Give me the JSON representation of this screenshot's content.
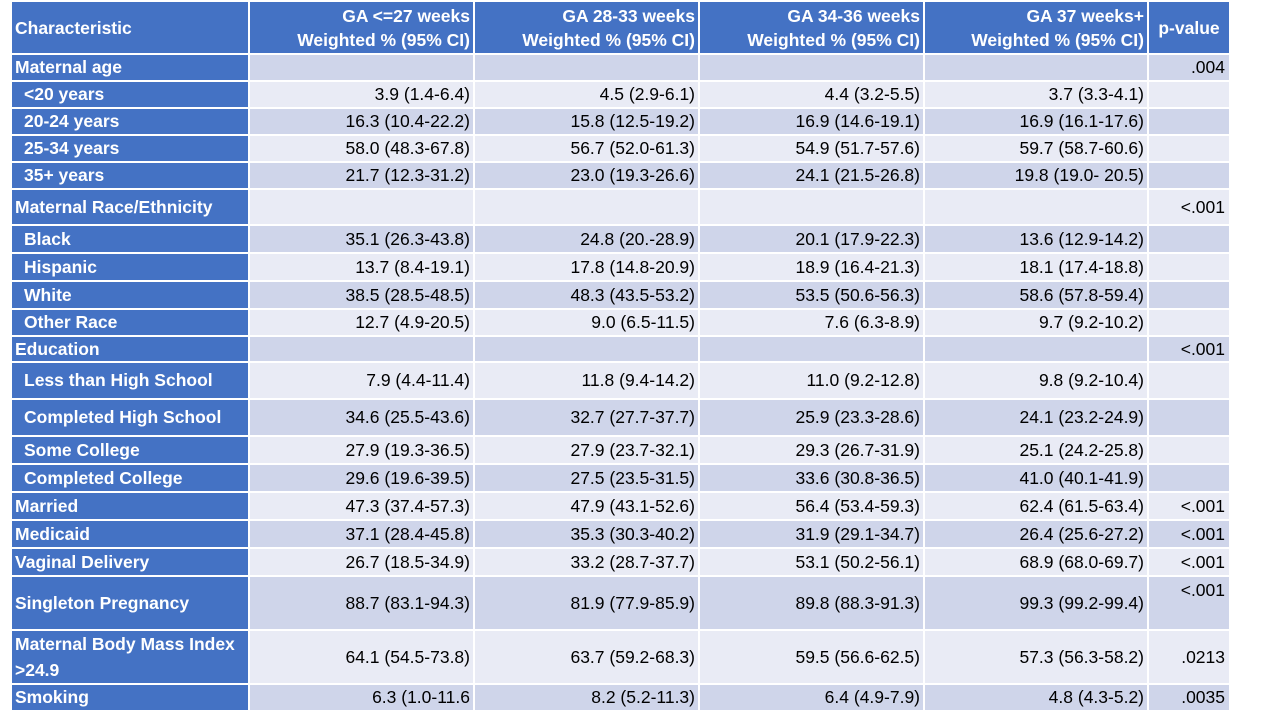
{
  "table": {
    "headers": [
      "Characteristic",
      "GA <=27 weeks\nWeighted % (95% CI)",
      "GA 28-33 weeks\nWeighted % (95% CI)",
      "GA 34-36 weeks\nWeighted % (95% CI)",
      "GA 37 weeks+\nWeighted % (95% CI)",
      "p-value"
    ],
    "rows": [
      {
        "label": "Maternal age",
        "values": [
          "",
          "",
          "",
          ""
        ],
        "p": ".004"
      },
      {
        "label": "<20 years",
        "values": [
          "3.9 (1.4-6.4)",
          "4.5 (2.9-6.1)",
          "4.4 (3.2-5.5)",
          "3.7 (3.3-4.1)"
        ],
        "p": ""
      },
      {
        "label": "20-24 years",
        "values": [
          "16.3 (10.4-22.2)",
          "15.8 (12.5-19.2)",
          "16.9 (14.6-19.1)",
          "16.9 (16.1-17.6)"
        ],
        "p": ""
      },
      {
        "label": "25-34 years",
        "values": [
          "58.0 (48.3-67.8)",
          "56.7 (52.0-61.3)",
          "54.9 (51.7-57.6)",
          "59.7 (58.7-60.6)"
        ],
        "p": ""
      },
      {
        "label": "35+ years",
        "values": [
          "21.7 (12.3-31.2)",
          "23.0 (19.3-26.6)",
          "24.1 (21.5-26.8)",
          "19.8 (19.0- 20.5)"
        ],
        "p": ""
      },
      {
        "label": "Maternal Race/Ethnicity",
        "values": [
          "",
          "",
          "",
          ""
        ],
        "p": "<.001"
      },
      {
        "label": "Black",
        "values": [
          "35.1 (26.3-43.8)",
          "24.8 (20.-28.9)",
          "20.1 (17.9-22.3)",
          "13.6 (12.9-14.2)"
        ],
        "p": ""
      },
      {
        "label": "Hispanic",
        "values": [
          "13.7 (8.4-19.1)",
          "17.8 (14.8-20.9)",
          "18.9 (16.4-21.3)",
          "18.1 (17.4-18.8)"
        ],
        "p": ""
      },
      {
        "label": "White",
        "values": [
          "38.5 (28.5-48.5)",
          "48.3 (43.5-53.2)",
          "53.5 (50.6-56.3)",
          "58.6 (57.8-59.4)"
        ],
        "p": ""
      },
      {
        "label": "Other Race",
        "values": [
          "12.7 (4.9-20.5)",
          "9.0 (6.5-11.5)",
          "7.6 (6.3-8.9)",
          "9.7 (9.2-10.2)"
        ],
        "p": ""
      },
      {
        "label": "Education",
        "values": [
          "",
          "",
          "",
          ""
        ],
        "p": "<.001"
      },
      {
        "label": "Less than High School",
        "values": [
          "7.9 (4.4-11.4)",
          "11.8 (9.4-14.2)",
          "11.0 (9.2-12.8)",
          "9.8 (9.2-10.4)"
        ],
        "p": ""
      },
      {
        "label": "Completed High School",
        "values": [
          "34.6 (25.5-43.6)",
          "32.7 (27.7-37.7)",
          "25.9 (23.3-28.6)",
          "24.1 (23.2-24.9)"
        ],
        "p": ""
      },
      {
        "label": "Some College",
        "values": [
          "27.9 (19.3-36.5)",
          "27.9 (23.7-32.1)",
          "29.3 (26.7-31.9)",
          "25.1 (24.2-25.8)"
        ],
        "p": ""
      },
      {
        "label": "Completed College",
        "values": [
          "29.6 (19.6-39.5)",
          "27.5 (23.5-31.5)",
          "33.6 (30.8-36.5)",
          "41.0 (40.1-41.9)"
        ],
        "p": ""
      },
      {
        "label": "Married",
        "values": [
          "47.3 (37.4-57.3)",
          "47.9 (43.1-52.6)",
          "56.4 (53.4-59.3)",
          "62.4 (61.5-63.4)"
        ],
        "p": "<.001"
      },
      {
        "label": "Medicaid",
        "values": [
          "37.1 (28.4-45.8)",
          "35.3 (30.3-40.2)",
          "31.9 (29.1-34.7)",
          "26.4 (25.6-27.2)"
        ],
        "p": "<.001"
      },
      {
        "label": "Vaginal Delivery",
        "values": [
          "26.7 (18.5-34.9)",
          "33.2 (28.7-37.7)",
          "53.1 (50.2-56.1)",
          "68.9 (68.0-69.7)"
        ],
        "p": "<.001"
      },
      {
        "label": "Singleton Pregnancy",
        "values": [
          "88.7 (83.1-94.3)",
          "81.9 (77.9-85.9)",
          "89.8 (88.3-91.3)",
          "99.3 (99.2-99.4)"
        ],
        "p": "<.001"
      },
      {
        "label": "Maternal Body Mass Index >24.9",
        "values": [
          "64.1 (54.5-73.8)",
          "63.7 (59.2-68.3)",
          "59.5 (56.6-62.5)",
          "57.3 (56.3-58.2)"
        ],
        "p": ".0213"
      },
      {
        "label": "Smoking",
        "values": [
          "6.3 (1.0-11.6",
          "8.2 (5.2-11.3)",
          "6.4 (4.9-7.9)",
          "4.8 (4.3-5.2)"
        ],
        "p": ".0035"
      }
    ]
  }
}
